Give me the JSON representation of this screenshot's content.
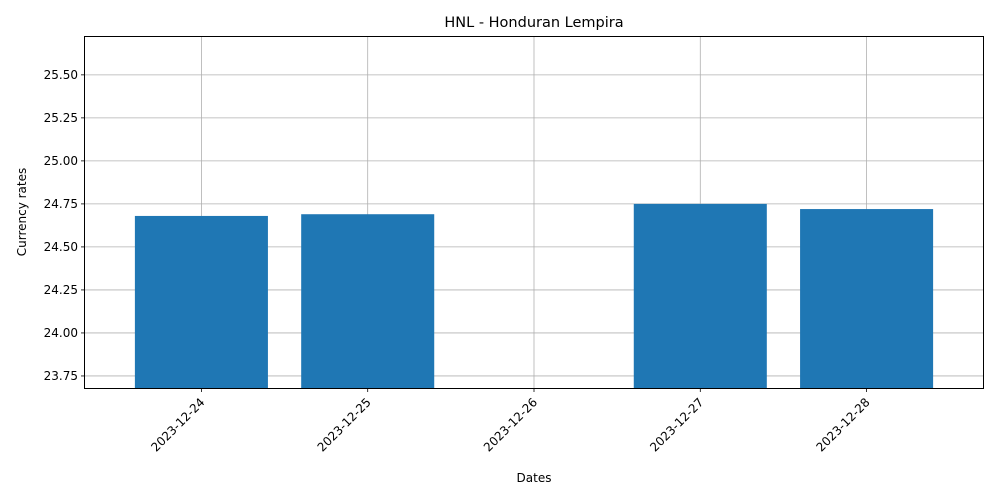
{
  "chart_data": {
    "type": "bar",
    "title": "HNL - Honduran Lempira",
    "xlabel": "Dates",
    "ylabel": "Currency rates",
    "categories": [
      "2023-12-24",
      "2023-12-25",
      "2023-12-26",
      "2023-12-27",
      "2023-12-28"
    ],
    "values": [
      24.68,
      24.69,
      null,
      24.75,
      24.72
    ],
    "ylim": [
      23.68,
      25.72
    ],
    "yticks": [
      "23.75",
      "24.00",
      "24.25",
      "24.50",
      "24.75",
      "25.00",
      "25.25",
      "25.50"
    ],
    "grid": true,
    "bar_color": "#1f77b4",
    "xtick_rotation": 45
  }
}
